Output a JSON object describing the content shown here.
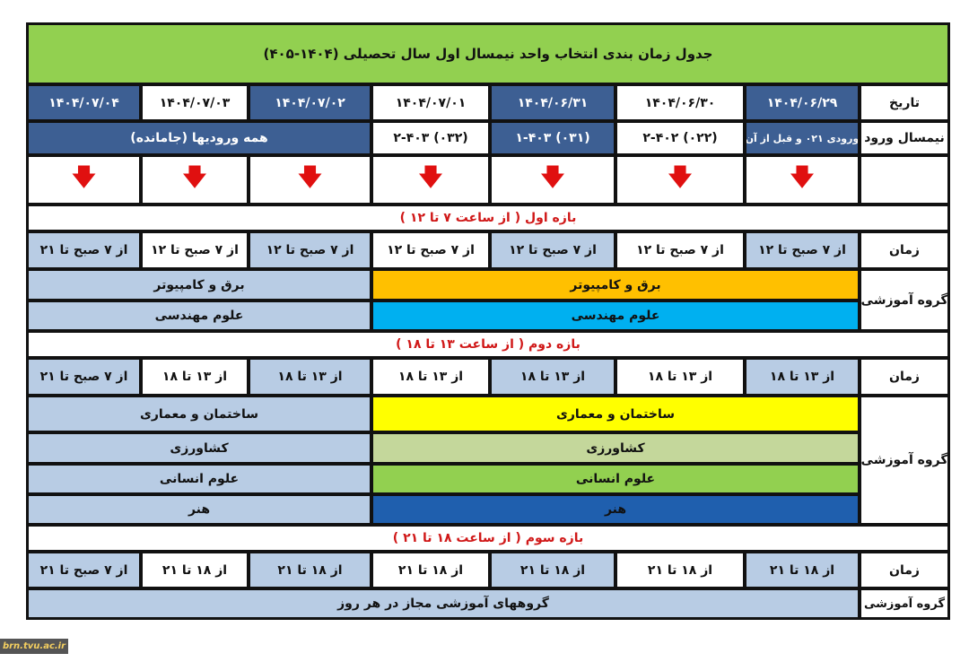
{
  "title": "جدول زمان بندی انتخاب واحد نیمسال اول سال تحصیلی (۱۴۰۴-۴۰۵)",
  "labels": {
    "date": "تاریخ",
    "entry": "نیمسال ورود",
    "time": "زمان",
    "group": "گروه آموزشی"
  },
  "dates": [
    "۱۴۰۴/۰۶/۲۹",
    "۱۴۰۴/۰۶/۳۰",
    "۱۴۰۴/۰۶/۳۱",
    "۱۴۰۴/۰۷/۰۱",
    "۱۴۰۴/۰۷/۰۲",
    "۱۴۰۴/۰۷/۰۳",
    "۱۴۰۴/۰۷/۰۴"
  ],
  "entries": [
    "ورودی ۰۲۱ و قبل از آن",
    "(۰۲۲) ۲-۴۰۲",
    "(۰۳۱) ۱-۴۰۳",
    "(۰۳۲) ۲-۴۰۳",
    "همه ورودیها (جامانده)"
  ],
  "arrow_icon": "arrow-down-icon",
  "band1": {
    "title": "بازه اول ( از ساعت ۷ تا ۱۲ )",
    "times": [
      "از ۷ صبح تا ۱۲",
      "از ۷ صبح تا ۱۲",
      "از ۷ صبح تا ۱۲",
      "از ۷ صبح تا ۱۲",
      "از ۷ صبح تا ۱۲",
      "از ۷ صبح تا ۱۲",
      "از ۷ صبح تا ۲۱"
    ],
    "groups": [
      "برق و کامپیوتر",
      "علوم مهندسی"
    ]
  },
  "band2": {
    "title": "بازه دوم ( از ساعت ۱۳ تا ۱۸ )",
    "times": [
      "از ۱۳ تا ۱۸",
      "از ۱۳ تا ۱۸",
      "از ۱۳ تا ۱۸",
      "از ۱۳ تا ۱۸",
      "از ۱۳ تا ۱۸",
      "از ۱۳ تا ۱۸",
      "از ۷ صبح تا ۲۱"
    ],
    "groups": [
      "ساختمان و معماری",
      "کشاورزی",
      "علوم انسانی",
      "هنر"
    ]
  },
  "band3": {
    "title": "بازه سوم ( از ساعت ۱۸ تا ۲۱ )",
    "times": [
      "از ۱۸ تا ۲۱",
      "از ۱۸ تا ۲۱",
      "از ۱۸ تا ۲۱",
      "از ۱۸ تا ۲۱",
      "از ۱۸ تا ۲۱",
      "از ۱۸ تا ۲۱",
      "از ۷ صبح تا ۲۱"
    ],
    "group_all": "گروههای آموزشی مجاز در هر روز"
  },
  "watermark": "brn.tvu.ac.ir",
  "colors": {
    "title": "#92d050",
    "dark_blue": "#3d5f93",
    "light_blue": "#b8cce4",
    "orange": "#ffc000",
    "cyan": "#00b0f0",
    "yellow": "#ffff00",
    "light_green": "#c4d79b",
    "green": "#92d050",
    "blue": "#1f5fae",
    "arrow": "#e01010",
    "band_text": "#d01818"
  }
}
